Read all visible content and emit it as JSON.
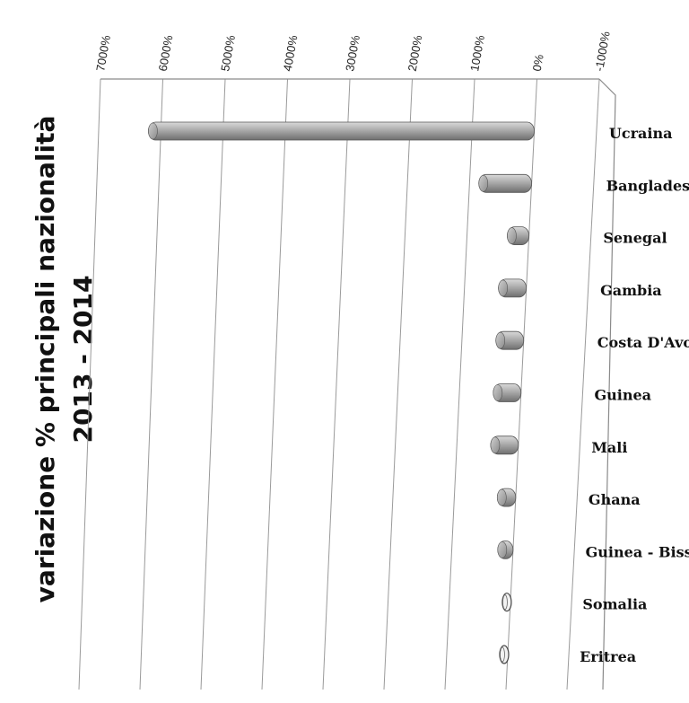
{
  "chart_data": {
    "type": "bar",
    "orientation": "horizontal",
    "title_line1": "variazione % principali nazionalità",
    "title_line2": "2013 - 2014",
    "categories": [
      "Ucraina",
      "Bangladesh",
      "Senegal",
      "Gambia",
      "Costa D'Avorio",
      "Guinea",
      "Mali",
      "Ghana",
      "Guinea - Bissau",
      "Somalia",
      "Eritrea"
    ],
    "values": [
      6200,
      850,
      350,
      450,
      450,
      450,
      450,
      300,
      250,
      -50,
      -80
    ],
    "ticks": [
      "7000%",
      "6000%",
      "5000%",
      "4000%",
      "3000%",
      "2000%",
      "1000%",
      "0%",
      "-1000%"
    ],
    "tick_values": [
      7000,
      6000,
      5000,
      4000,
      3000,
      2000,
      1000,
      0,
      -1000
    ],
    "xlim": [
      -1000,
      7000
    ],
    "grid": true,
    "bar_color": "#a9a9a9",
    "bar_highlight": "#d4d4d4",
    "bar_shadow": "#6e6e6e"
  }
}
